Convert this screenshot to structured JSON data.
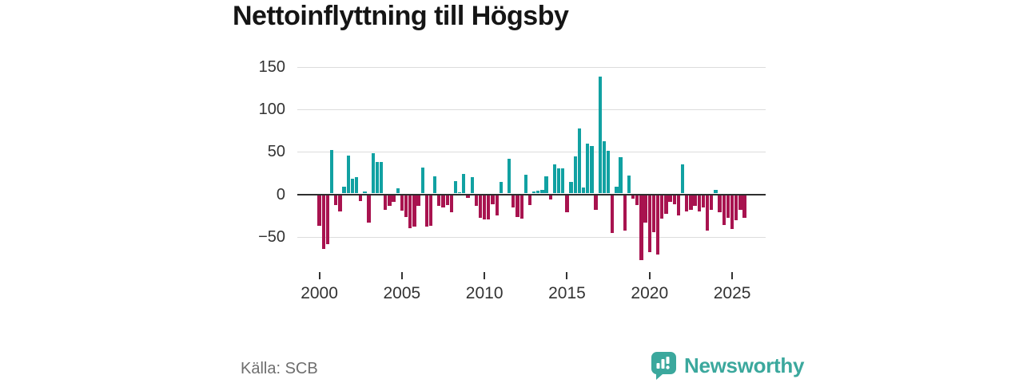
{
  "title": "Nettoinflyttning till Högsby",
  "source": "Källa: SCB",
  "brand": {
    "name": "Newsworthy",
    "color": "#3ba89d",
    "icon": "speech-bubble-bar-chart-icon"
  },
  "chart_data": {
    "type": "bar",
    "title": "Nettoinflyttning till Högsby",
    "frequency": "quarterly",
    "x_start": "2000-Q1",
    "x_end": "2025-Q4",
    "values": [
      -36,
      -64,
      -58,
      51,
      -12,
      -19,
      8,
      45,
      17,
      19,
      -7,
      2,
      -33,
      48,
      37,
      37,
      -17,
      -13,
      -8,
      6,
      -18,
      -26,
      -39,
      -37,
      -13,
      31,
      -37,
      -36,
      20,
      -13,
      -15,
      -12,
      -20,
      15,
      1,
      23,
      -3,
      19,
      -13,
      -27,
      -29,
      -29,
      -11,
      -24,
      14,
      0,
      41,
      -15,
      -26,
      -28,
      22,
      -12,
      2,
      3,
      4,
      20,
      -5,
      34,
      30,
      30,
      -20,
      14,
      44,
      77,
      7,
      59,
      56,
      -17,
      138,
      62,
      50,
      -45,
      8,
      43,
      -42,
      21,
      -4,
      -12,
      -77,
      -33,
      -67,
      -44,
      -70,
      -28,
      -22,
      -8,
      -11,
      -24,
      34,
      -19,
      -17,
      -13,
      -19,
      -15,
      -42,
      -17,
      4,
      -20,
      -35,
      -27,
      -40,
      -30,
      -17,
      -27
    ],
    "start_year": 2000,
    "x_tick_labels": [
      "2000",
      "2005",
      "2010",
      "2015",
      "2020",
      "2025"
    ],
    "y_ticks": [
      150,
      100,
      50,
      0,
      -50
    ],
    "ylim": [
      -85,
      158
    ],
    "grid": true,
    "legend": false,
    "positive_color": "#11a1a2",
    "negative_color": "#a8134f",
    "axis_color": "#2e2e2e",
    "gridline_color": "#dcdcdc"
  }
}
